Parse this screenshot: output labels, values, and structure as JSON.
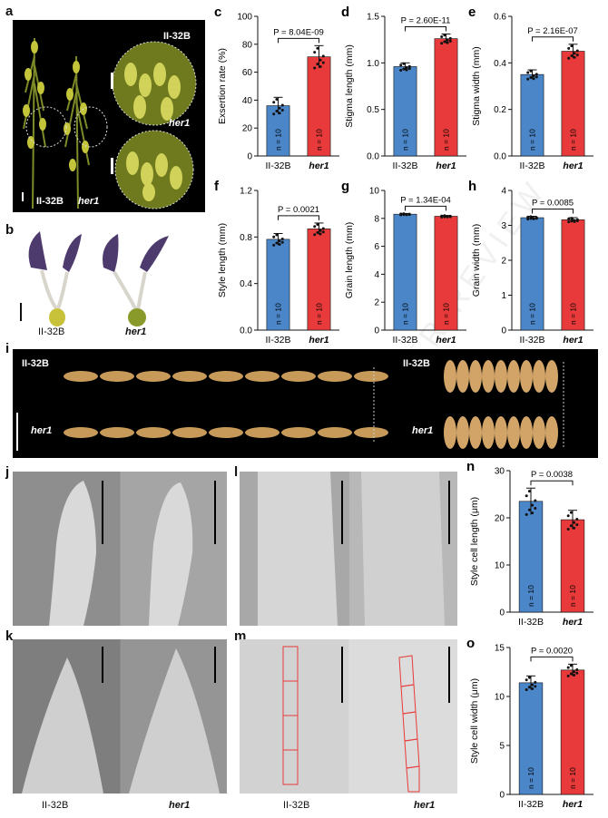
{
  "panels": {
    "a": {
      "letter": "a",
      "top_label": "II-32B",
      "bottom_label": "her1",
      "left_label1": "II-32B",
      "left_label2": "her1"
    },
    "b": {
      "letter": "b",
      "label1": "II-32B",
      "label2": "her1"
    },
    "i": {
      "letter": "i",
      "tl": "II-32B",
      "bl": "her1",
      "tr": "II-32B",
      "br": "her1"
    },
    "j": {
      "letter": "j"
    },
    "k": {
      "letter": "k",
      "label1": "II-32B",
      "label2": "her1"
    },
    "l": {
      "letter": "l"
    },
    "m": {
      "letter": "m",
      "label1": "II-32B",
      "label2": "her1"
    }
  },
  "colors": {
    "ctrl": "#4a86c8",
    "mut": "#e83a3a"
  },
  "chart_data": [
    {
      "id": "c",
      "type": "bar",
      "ylabel": "Exsertion rate (%)",
      "categories": [
        "II-32B",
        "her1"
      ],
      "values": [
        36,
        71
      ],
      "errors": [
        6,
        8
      ],
      "ylim": [
        0,
        100
      ],
      "ticks": [
        0,
        20,
        40,
        60,
        80,
        100
      ],
      "tick_labels": [
        "0",
        "20",
        "40",
        "60",
        "80",
        "100"
      ],
      "pvalue": "P = 8.04E-09",
      "n_labels": [
        "n = 10",
        "n = 10"
      ]
    },
    {
      "id": "d",
      "type": "bar",
      "ylabel": "Stigma length (mm)",
      "categories": [
        "II-32B",
        "her1"
      ],
      "values": [
        0.96,
        1.26
      ],
      "errors": [
        0.04,
        0.05
      ],
      "ylim": [
        0,
        1.5
      ],
      "ticks": [
        0,
        0.5,
        1.0,
        1.5
      ],
      "tick_labels": [
        "0.0",
        "0.5",
        "1.0",
        "1.5"
      ],
      "pvalue": "P = 2.60E-11",
      "n_labels": [
        "n = 10",
        "n = 10"
      ]
    },
    {
      "id": "e",
      "type": "bar",
      "ylabel": "Stigma width (mm)",
      "categories": [
        "II-32B",
        "her1"
      ],
      "values": [
        0.35,
        0.45
      ],
      "errors": [
        0.02,
        0.03
      ],
      "ylim": [
        0,
        0.6
      ],
      "ticks": [
        0,
        0.2,
        0.4,
        0.6
      ],
      "tick_labels": [
        "0.0",
        "0.2",
        "0.4",
        "0.6"
      ],
      "pvalue": "P = 2.16E-07",
      "n_labels": [
        "n = 10",
        "n = 10"
      ]
    },
    {
      "id": "f",
      "type": "bar",
      "ylabel": "Style length (mm)",
      "categories": [
        "II-32B",
        "her1"
      ],
      "values": [
        0.78,
        0.87
      ],
      "errors": [
        0.05,
        0.05
      ],
      "ylim": [
        0,
        1.2
      ],
      "ticks": [
        0,
        0.4,
        0.8,
        1.2
      ],
      "tick_labels": [
        "0.0",
        "0.4",
        "0.8",
        "1.2"
      ],
      "pvalue": "P = 0.0021",
      "n_labels": [
        "n = 10",
        "n = 10"
      ]
    },
    {
      "id": "g",
      "type": "bar",
      "ylabel": "Grain length (mm)",
      "categories": [
        "II-32B",
        "her1"
      ],
      "values": [
        8.3,
        8.15
      ],
      "errors": [
        0.05,
        0.06
      ],
      "ylim": [
        0,
        10
      ],
      "ticks": [
        0,
        2,
        4,
        6,
        8,
        10
      ],
      "tick_labels": [
        "0",
        "2",
        "4",
        "6",
        "8",
        "10"
      ],
      "pvalue": "P = 1.34E-04",
      "n_labels": [
        "n = 10",
        "n = 10"
      ]
    },
    {
      "id": "h",
      "type": "bar",
      "ylabel": "Grain width (mm)",
      "categories": [
        "II-32B",
        "her1"
      ],
      "values": [
        3.22,
        3.16
      ],
      "errors": [
        0.04,
        0.06
      ],
      "ylim": [
        0,
        4
      ],
      "ticks": [
        0,
        1,
        2,
        3,
        4
      ],
      "tick_labels": [
        "0",
        "1",
        "2",
        "3",
        "4"
      ],
      "pvalue": "P = 0.0085",
      "n_labels": [
        "n = 10",
        "n = 10"
      ]
    },
    {
      "id": "n",
      "type": "bar",
      "ylabel": "Style cell length (μm)",
      "categories": [
        "II-32B",
        "her1"
      ],
      "values": [
        23.5,
        19.6
      ],
      "errors": [
        2.8,
        2.0
      ],
      "ylim": [
        0,
        30
      ],
      "ticks": [
        0,
        10,
        20,
        30
      ],
      "tick_labels": [
        "0",
        "10",
        "20",
        "30"
      ],
      "pvalue": "P = 0.0038",
      "n_labels": [
        "n = 10",
        "n = 10"
      ]
    },
    {
      "id": "o",
      "type": "bar",
      "ylabel": "Style cell width (μm)",
      "categories": [
        "II-32B",
        "her1"
      ],
      "values": [
        11.4,
        12.7
      ],
      "errors": [
        0.7,
        0.6
      ],
      "ylim": [
        0,
        15
      ],
      "ticks": [
        0,
        5,
        10,
        15
      ],
      "tick_labels": [
        "0",
        "5",
        "10",
        "15"
      ],
      "pvalue": "P = 0.0020",
      "n_labels": [
        "n = 10",
        "n = 10"
      ]
    }
  ]
}
